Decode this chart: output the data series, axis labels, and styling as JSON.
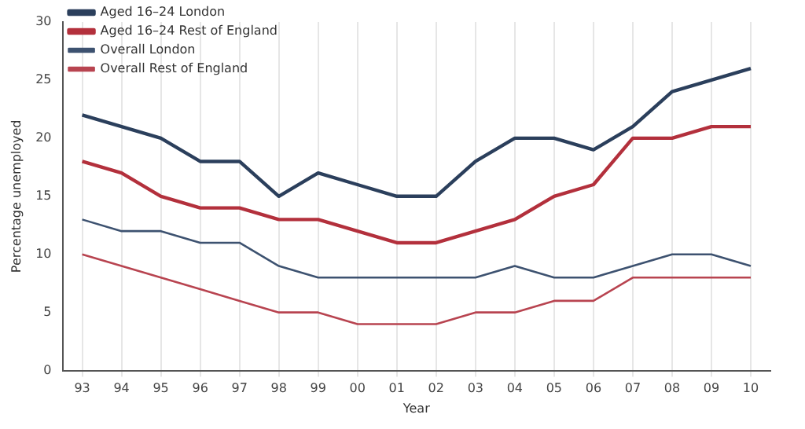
{
  "chart_data": {
    "type": "line",
    "xlabel": "Year",
    "ylabel": "Percentage unemployed",
    "categories": [
      "93",
      "94",
      "95",
      "96",
      "97",
      "98",
      "99",
      "00",
      "01",
      "02",
      "03",
      "04",
      "05",
      "06",
      "07",
      "08",
      "09",
      "10"
    ],
    "series": [
      {
        "name": "Aged 16–24 London",
        "color": "#2b3f5c",
        "values": [
          22,
          21,
          20,
          18,
          18,
          15,
          17,
          16,
          15,
          15,
          18,
          20,
          20,
          19,
          21,
          24,
          25,
          26
        ]
      },
      {
        "name": "Aged 16–24 Rest of England",
        "color": "#b3303c",
        "values": [
          18,
          17,
          15,
          14,
          14,
          13,
          13,
          12,
          11,
          11,
          12,
          13,
          15,
          16,
          20,
          20,
          21,
          21
        ]
      },
      {
        "name": "Overall London",
        "color": "#3d5270",
        "values": [
          13,
          12,
          12,
          11,
          11,
          9,
          8,
          8,
          8,
          8,
          8,
          9,
          8,
          8,
          9,
          10,
          10,
          9
        ]
      },
      {
        "name": "Overall Rest of England",
        "color": "#b84450",
        "values": [
          10,
          9,
          8,
          7,
          6,
          5,
          5,
          4,
          4,
          4,
          5,
          5,
          6,
          6,
          8,
          8,
          8,
          8
        ]
      }
    ],
    "ylim": [
      0,
      30
    ],
    "yticks": [
      0,
      5,
      10,
      15,
      20,
      25,
      30
    ],
    "grid": "x",
    "legend": "top left",
    "marker": "none",
    "line_style": "solid"
  }
}
